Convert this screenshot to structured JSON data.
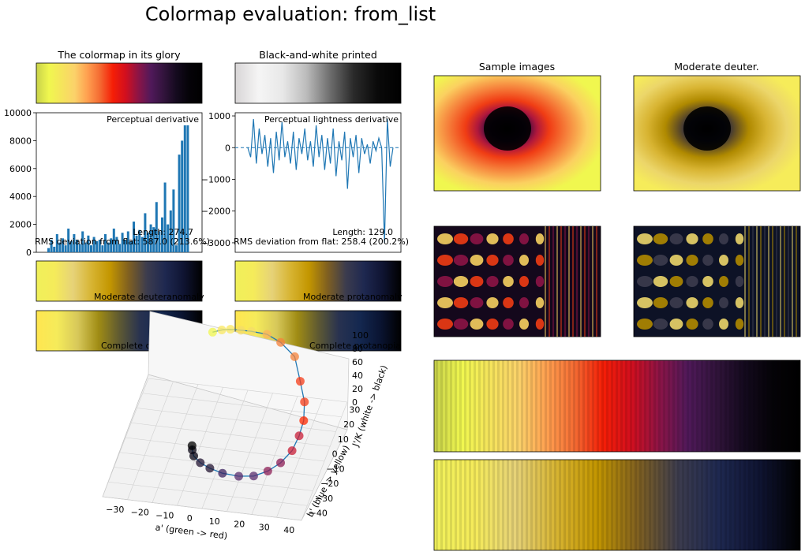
{
  "figure": {
    "title": "Colormap evaluation: from_list",
    "colors": {
      "line": "#1f77b4",
      "gamut": [
        "#f0f74f",
        "#fae85f",
        "#f4dc6a",
        "#fcb45c",
        "#f6813a",
        "#f53c18",
        "#ff2800",
        "#c81e37",
        "#8c1e55",
        "#5a2d6e",
        "#3c235f",
        "#231432",
        "#0a0514",
        "#000000"
      ],
      "deuter_moderate": [
        "#f0f05a",
        "#f5eb5a",
        "#e6d278",
        "#d7b432",
        "#c39600",
        "#806020",
        "#3c3c4e",
        "#1e2850",
        "#0f1432",
        "#000000"
      ],
      "deuter_complete": [
        "#ffe650",
        "#f5eb5a",
        "#d7c85a",
        "#a08c14",
        "#5f5a32",
        "#283250",
        "#142850",
        "#0a1432",
        "#000000"
      ],
      "lightness": [
        "#d8d5d6",
        "#f5f5f5",
        "#e8e8e8",
        "#bcbcbc",
        "#6e6e6e",
        "#2a2a2a",
        "#0a0a0a",
        "#000000"
      ]
    }
  },
  "chart_data": [
    {
      "type": "image",
      "title": "The colormap in its glory",
      "colors": [
        "#c8d24a",
        "#f0f74f",
        "#f5e45c",
        "#fbd26a",
        "#ffa050",
        "#f46a32",
        "#f51e06",
        "#d20f1e",
        "#8c1446",
        "#50195a",
        "#32143c",
        "#140a1e",
        "#050308",
        "#000000"
      ]
    },
    {
      "type": "image",
      "title": "Black-and-white printed"
    },
    {
      "type": "bar",
      "title": "",
      "annotation": "Perceptual derivative",
      "stats": [
        "Length: 274.7",
        "RMS deviation from flat: 587.0 (213.6%)"
      ],
      "ylim": [
        0,
        10000
      ],
      "yticks": [
        "0",
        "2000",
        "4000",
        "6000",
        "8000",
        "10000"
      ],
      "ytick_values": [
        0,
        2000,
        4000,
        6000,
        8000,
        10000
      ],
      "values": [
        300,
        900,
        400,
        1300,
        700,
        1000,
        500,
        1700,
        800,
        1300,
        900,
        600,
        1500,
        700,
        1200,
        500,
        1100,
        800,
        900,
        500,
        1300,
        700,
        1000,
        1700,
        1100,
        600,
        1400,
        900,
        1500,
        800,
        2200,
        1200,
        1600,
        1100,
        2800,
        1400,
        2000,
        1800,
        3600,
        1500,
        2500,
        5000,
        2000,
        3000,
        4500,
        500,
        7000,
        8000,
        9100,
        9100
      ]
    },
    {
      "type": "line",
      "title": "",
      "annotation": "Perceptual lightness derivative",
      "stats": [
        "Length: 129.0",
        "RMS deviation from flat: 258.4 (200.2%)"
      ],
      "ylim": [
        -3300,
        1100
      ],
      "yticks": [
        "1000",
        "0",
        "−1000",
        "−2000",
        "−3000"
      ],
      "ytick_values": [
        1000,
        0,
        -1000,
        -2000,
        -3000
      ],
      "values": [
        0,
        -300,
        900,
        -500,
        600,
        -200,
        400,
        -600,
        300,
        -800,
        500,
        -400,
        800,
        -300,
        200,
        -500,
        500,
        -700,
        300,
        -200,
        600,
        -400,
        200,
        -600,
        700,
        -300,
        400,
        -700,
        300,
        -500,
        600,
        -900,
        200,
        -400,
        500,
        -1300,
        300,
        -300,
        400,
        -800,
        300,
        -200,
        100,
        -500,
        200,
        -100,
        300,
        0,
        -3000,
        900,
        -600,
        0
      ]
    },
    {
      "type": "image",
      "label": "Moderate deuteranomaly"
    },
    {
      "type": "image",
      "label": "Moderate protanomaly"
    },
    {
      "type": "image",
      "label": "Complete deuteranopia"
    },
    {
      "type": "image",
      "label": "Complete protanopia"
    },
    {
      "type": "scatter",
      "xlabel": "a' (green -> red)",
      "ylabel": "b' (blue -> yellow)",
      "zlabel": "J'/K (white -> black)",
      "xticks": [
        "−30",
        "−20",
        "−10",
        "0",
        "10",
        "20",
        "30",
        "40"
      ],
      "yticks": [
        "−40",
        "−30",
        "−20",
        "−10",
        "0",
        "10",
        "20",
        "30"
      ],
      "zticks": [
        "0",
        "20",
        "40",
        "60",
        "80",
        "100"
      ],
      "points_a": [
        -8,
        -5,
        -2,
        2,
        6,
        12,
        18,
        25,
        30,
        34,
        36,
        36,
        35,
        32,
        28,
        23,
        17,
        10,
        4,
        -1,
        -5,
        -7,
        -8
      ],
      "points_b": [
        30,
        33,
        35,
        36,
        37,
        38,
        36,
        30,
        18,
        8,
        -2,
        -10,
        -18,
        -25,
        -30,
        -33,
        -33,
        -31,
        -27,
        -22,
        -16,
        -10,
        -6
      ],
      "points_J": [
        92,
        90,
        88,
        86,
        84,
        80,
        75,
        70,
        62,
        55,
        50,
        45,
        40,
        36,
        33,
        30,
        27,
        24,
        20,
        15,
        10,
        5,
        2
      ]
    },
    {
      "type": "image",
      "title": "Sample images"
    },
    {
      "type": "image",
      "title": "Moderate deuter."
    }
  ]
}
